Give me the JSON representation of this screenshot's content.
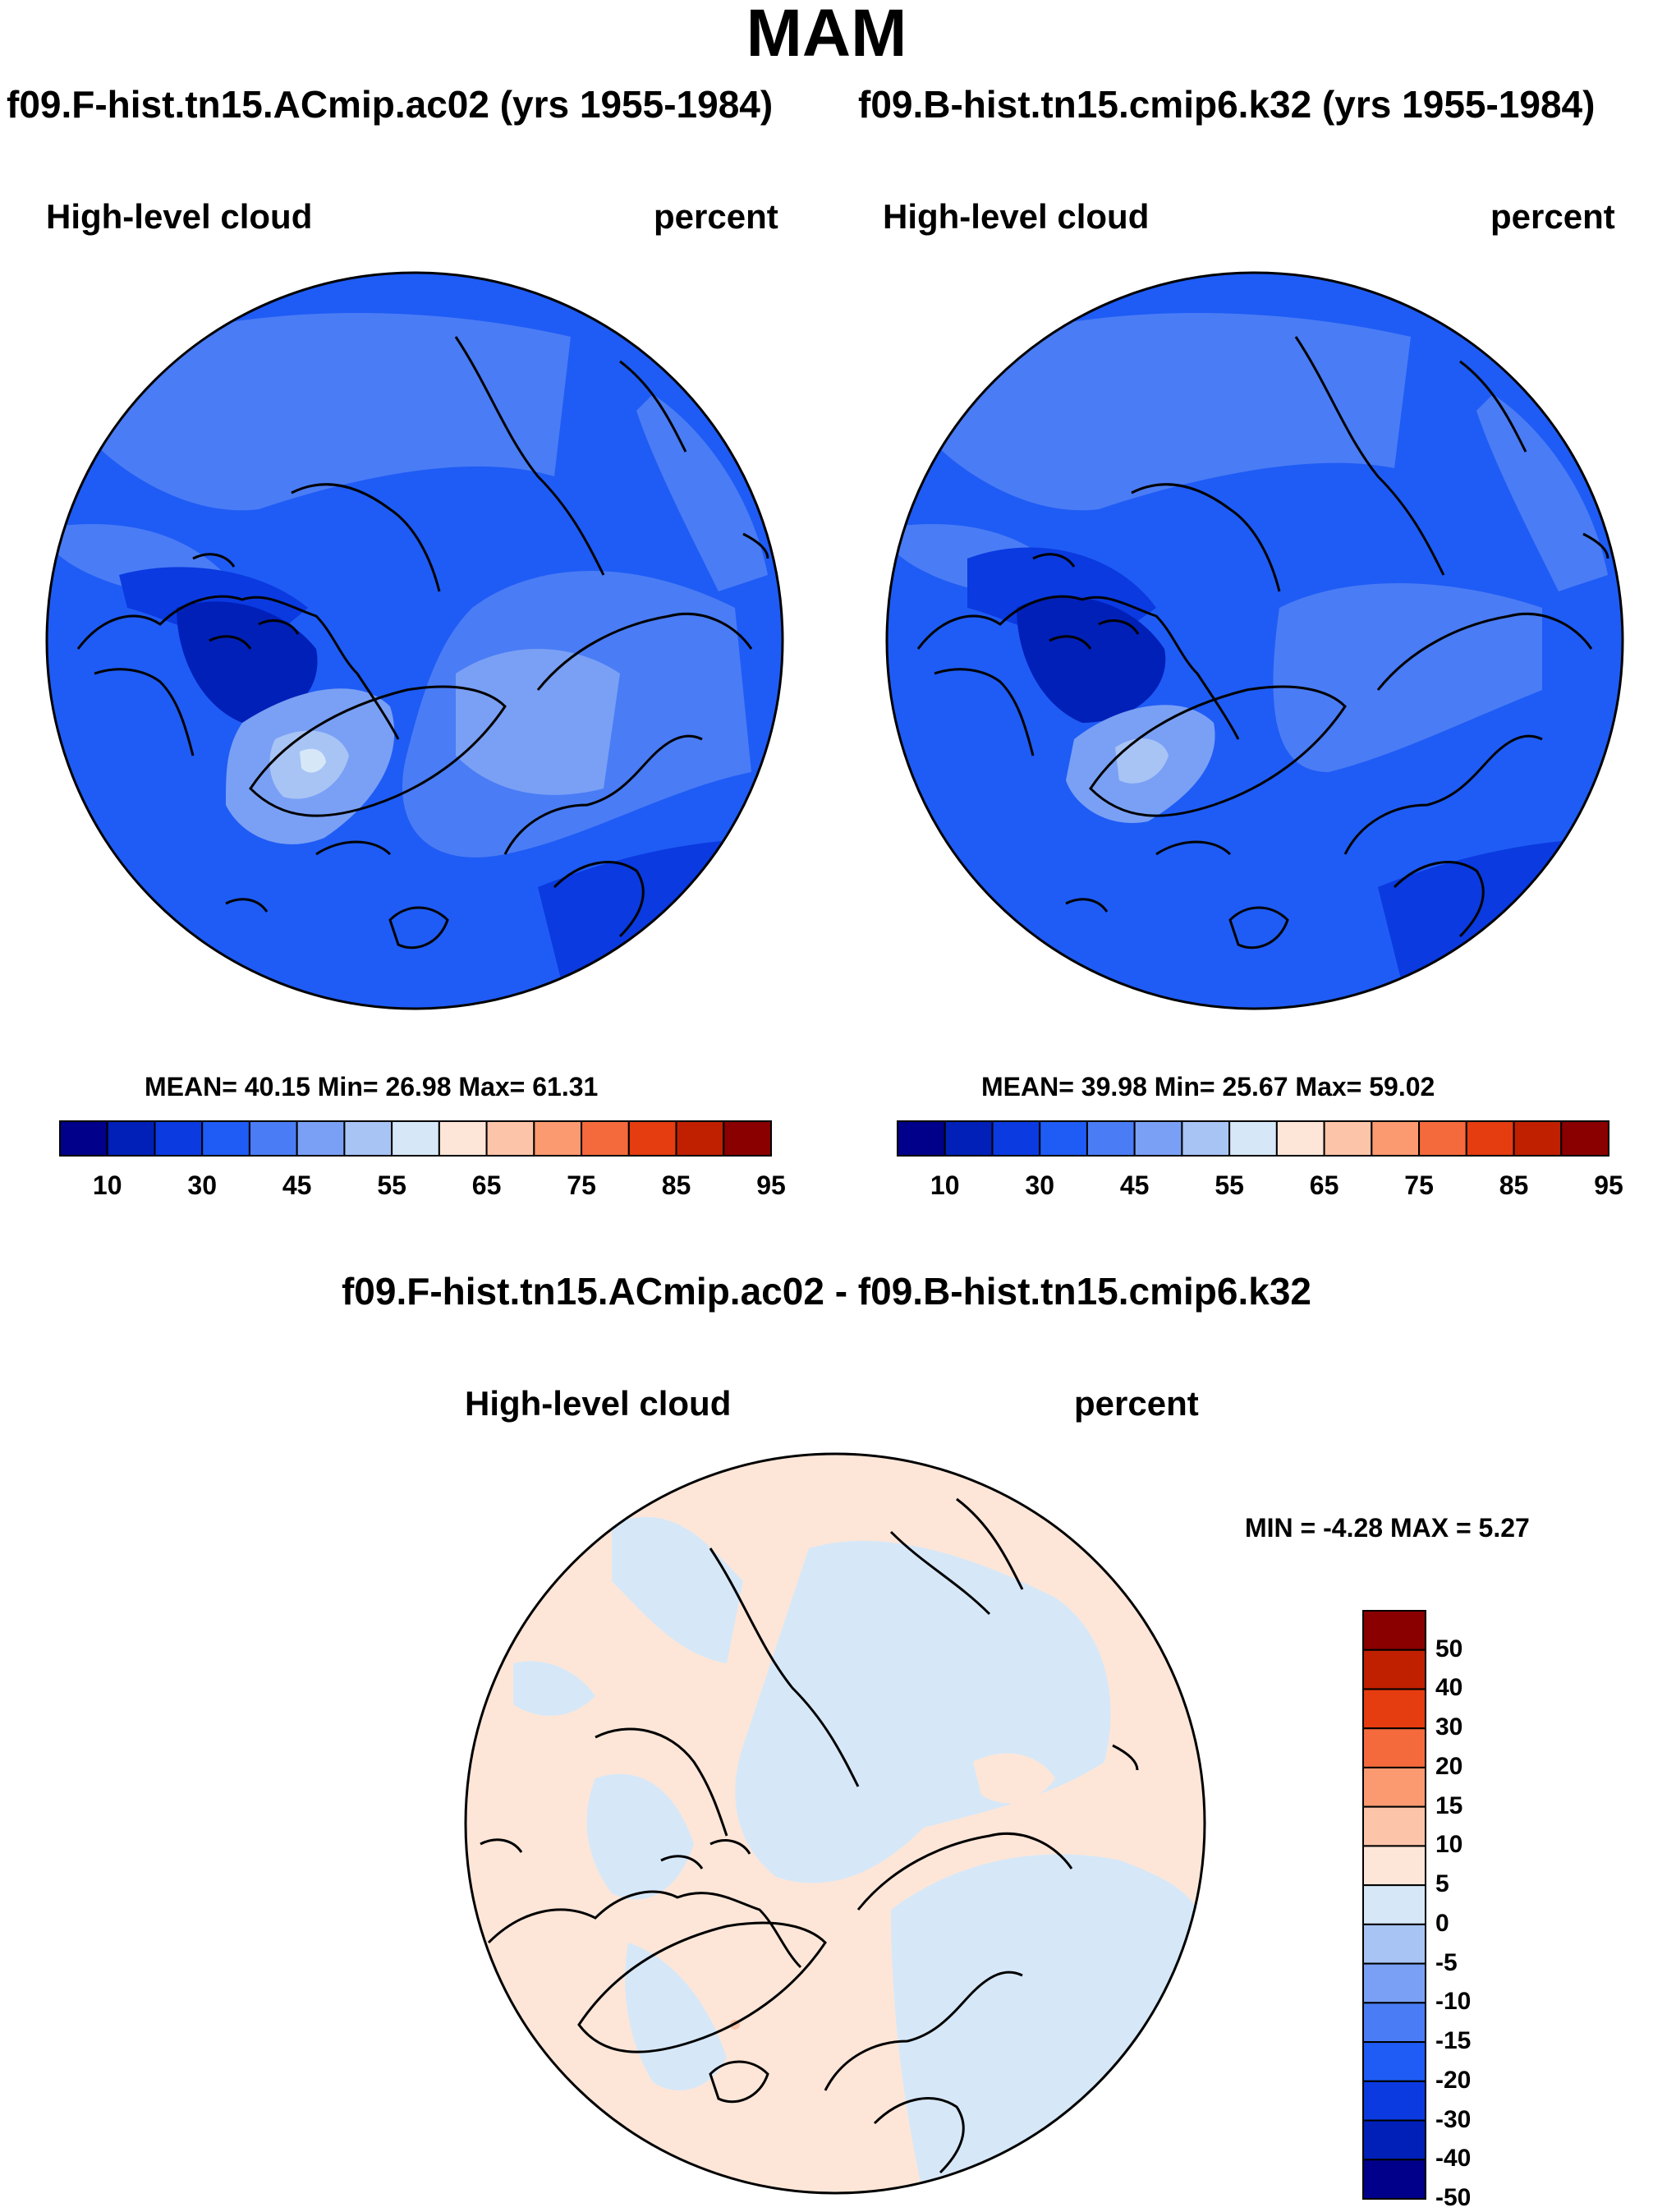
{
  "header": {
    "season": "MAM"
  },
  "panels": [
    {
      "case_title": "f09.F-hist.tn15.ACmip.ac02 (yrs 1955-1984)",
      "variable": "High-level cloud",
      "units": "percent",
      "stats": "MEAN=  40.15  Min=  26.98  Max=  61.31"
    },
    {
      "case_title": "f09.B-hist.tn15.cmip6.k32 (yrs 1955-1984)",
      "variable": "High-level cloud",
      "units": "percent",
      "stats": "MEAN=  39.98  Min=  25.67  Max=  59.02"
    }
  ],
  "difference": {
    "title": "f09.F-hist.tn15.ACmip.ac02 - f09.B-hist.tn15.cmip6.k32",
    "variable": "High-level cloud",
    "units": "percent",
    "stats": "MIN =  -4.28 MAX =   5.27"
  },
  "colorbar_main": {
    "labels": [
      "10",
      "30",
      "45",
      "55",
      "65",
      "75",
      "85",
      "95"
    ],
    "colors": [
      "#00008a",
      "#0020b8",
      "#0a3ae0",
      "#1f5cf5",
      "#4a7cf5",
      "#7aa0f5",
      "#a8c4f5",
      "#d6e8f8",
      "#fde6d8",
      "#fcc4a8",
      "#fb9a70",
      "#f56a3c",
      "#e53c10",
      "#c02000",
      "#8a0000"
    ]
  },
  "colorbar_diff": {
    "labels": [
      "50",
      "40",
      "30",
      "20",
      "15",
      "10",
      "5",
      "0",
      "-5",
      "-10",
      "-15",
      "-20",
      "-30",
      "-40",
      "-50"
    ],
    "colors": [
      "#8a0000",
      "#c02000",
      "#e53c10",
      "#f56a3c",
      "#fb9a70",
      "#fcc4a8",
      "#fde6d8",
      "#d6e8f8",
      "#a8c4f5",
      "#7aa0f5",
      "#4a7cf5",
      "#1f5cf5",
      "#0a3ae0",
      "#0020b8",
      "#00008a"
    ]
  }
}
